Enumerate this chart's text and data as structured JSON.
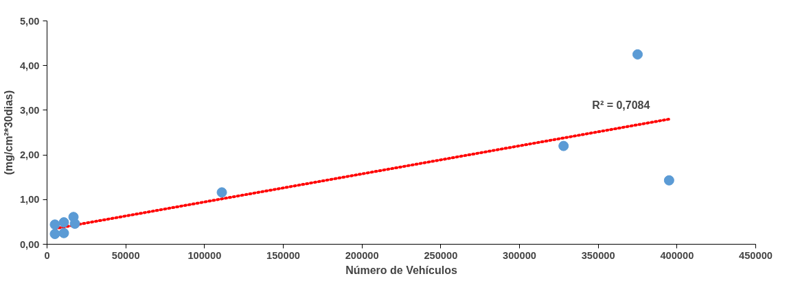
{
  "chart_data": {
    "type": "scatter",
    "xlabel": "Número de Vehículos",
    "ylabel": "(mg/cm²*30dias)",
    "xlim": [
      0,
      450000
    ],
    "xticks": [
      0,
      50000,
      100000,
      150000,
      200000,
      250000,
      300000,
      350000,
      400000,
      450000
    ],
    "ylim": [
      0,
      5
    ],
    "yticks": [
      {
        "value": 0,
        "label": "0,00"
      },
      {
        "value": 1,
        "label": "1,00"
      },
      {
        "value": 2,
        "label": "2,00"
      },
      {
        "value": 3,
        "label": "3,00"
      },
      {
        "value": 4,
        "label": "4,00"
      },
      {
        "value": 5,
        "label": "5,00"
      }
    ],
    "grid": false,
    "series": [
      {
        "color": "#5b9bd5",
        "marker": "circle",
        "x": [
          5000,
          5000,
          10700,
          10700,
          16800,
          17700,
          111000,
          328000,
          375000,
          395000
        ],
        "values": [
          0.44,
          0.23,
          0.49,
          0.25,
          0.61,
          0.46,
          1.16,
          2.2,
          4.25,
          1.43
        ]
      },
      {
        "type": "line",
        "color": "#ff0000",
        "line_style": "dotted",
        "x": [
          5000,
          395000
        ],
        "values": [
          0.35,
          2.8
        ]
      }
    ],
    "annotations": [
      "R² = 0,7084"
    ]
  }
}
